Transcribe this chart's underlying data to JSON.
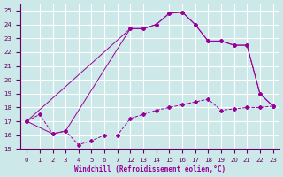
{
  "xlabel": "Windchill (Refroidissement éolien,°C)",
  "bg_color": "#cce8e8",
  "grid_color": "#ffffff",
  "line_color": "#990099",
  "ylim": [
    15,
    25.5
  ],
  "yticks": [
    15,
    16,
    17,
    18,
    19,
    20,
    21,
    22,
    23,
    24,
    25
  ],
  "xlabels": [
    "0",
    "1",
    "2",
    "3",
    "4",
    "5",
    "6",
    "7",
    "12",
    "13",
    "14",
    "15",
    "16",
    "17",
    "18",
    "19",
    "20",
    "21",
    "22",
    "23"
  ],
  "series1_pos": [
    0,
    1,
    2,
    3,
    4,
    5,
    6,
    7,
    8,
    9,
    10,
    11,
    12,
    13,
    14,
    15,
    16,
    17,
    18,
    19
  ],
  "series1_y": [
    17.0,
    17.5,
    16.1,
    16.3,
    15.3,
    15.6,
    16.0,
    16.0,
    17.2,
    17.5,
    17.8,
    18.0,
    18.2,
    18.4,
    18.6,
    17.8,
    17.9,
    18.0,
    18.0,
    18.1
  ],
  "series2_pos": [
    0,
    2,
    3,
    8,
    9,
    10,
    11,
    12,
    13,
    14,
    15,
    16,
    17,
    18,
    19
  ],
  "series2_y": [
    17.0,
    16.1,
    16.3,
    23.7,
    23.7,
    24.0,
    24.8,
    24.9,
    24.0,
    22.8,
    22.8,
    22.5,
    22.5,
    19.0,
    18.1
  ],
  "series3_pos": [
    0,
    8,
    9,
    10,
    11,
    12,
    13,
    14,
    15,
    16,
    17,
    18,
    19
  ],
  "series3_y": [
    17.0,
    23.7,
    23.7,
    24.0,
    24.8,
    24.9,
    24.0,
    22.8,
    22.8,
    22.5,
    22.5,
    19.0,
    18.1
  ]
}
